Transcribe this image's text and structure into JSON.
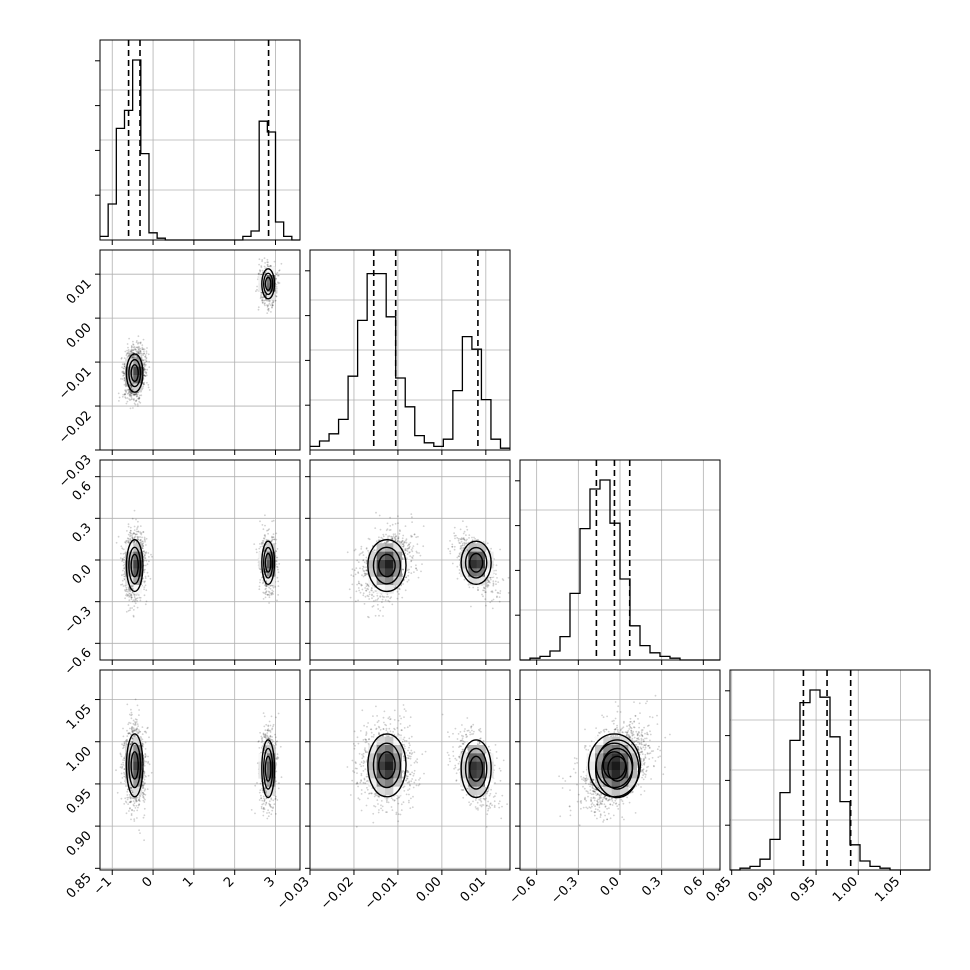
{
  "chart_data": {
    "type": "corner",
    "title": "",
    "colors": {
      "line": "#000000",
      "grid": "#b0b0b0",
      "scatter": "#000000"
    },
    "grid": true,
    "parameters": [
      {
        "index": 0,
        "range": [
          -1.3,
          3.6
        ],
        "ticks": [
          -1,
          0,
          1,
          2,
          3
        ],
        "tick_labels": [
          "−1",
          "0",
          "1",
          "2",
          "3"
        ],
        "quantiles": [
          -0.6,
          -0.32,
          2.83
        ],
        "label": ""
      },
      {
        "index": 1,
        "range": [
          -0.03,
          0.0155
        ],
        "ticks": [
          -0.03,
          -0.02,
          -0.01,
          0.0,
          0.01
        ],
        "tick_labels": [
          "−0.03",
          "−0.02",
          "−0.01",
          "0.00",
          "0.01"
        ],
        "quantiles": [
          -0.0155,
          -0.0105,
          0.0082
        ],
        "label": ""
      },
      {
        "index": 2,
        "range": [
          -0.72,
          0.72
        ],
        "ticks": [
          -0.6,
          -0.3,
          0.0,
          0.3,
          0.6
        ],
        "tick_labels": [
          "−0.6",
          "−0.3",
          "0.0",
          "0.3",
          "0.6"
        ],
        "quantiles": [
          -0.17,
          -0.04,
          0.07
        ],
        "label": ""
      },
      {
        "index": 3,
        "range": [
          0.848,
          1.085
        ],
        "ticks": [
          0.85,
          0.9,
          0.95,
          1.0,
          1.05
        ],
        "tick_labels": [
          "0.85",
          "0.90",
          "0.95",
          "1.00",
          "1.05"
        ],
        "quantiles": [
          0.935,
          0.963,
          0.991
        ],
        "label": ""
      }
    ],
    "modes": [
      {
        "weight": 0.62,
        "mean": [
          -0.45,
          -0.0125,
          -0.04,
          0.972
        ],
        "sd": [
          0.13,
          0.0028,
          0.12,
          0.024
        ]
      },
      {
        "weight": 0.38,
        "mean": [
          2.82,
          0.0078,
          -0.02,
          0.968
        ],
        "sd": [
          0.1,
          0.0022,
          0.1,
          0.022
        ]
      }
    ],
    "histograms": [
      {
        "param": 0,
        "bin_edges": [
          -1.3,
          -1.1,
          -0.9,
          -0.7,
          -0.5,
          -0.3,
          -0.1,
          0.1,
          0.3,
          0.5,
          2.2,
          2.4,
          2.6,
          2.8,
          3.0,
          3.2,
          3.4,
          3.6
        ],
        "counts": [
          0.02,
          0.2,
          0.62,
          0.72,
          1.0,
          0.48,
          0.04,
          0.01,
          0.0,
          0.0,
          0.02,
          0.05,
          0.66,
          0.6,
          0.1,
          0.02,
          0.0
        ]
      },
      {
        "param": 1,
        "bins": 21,
        "counts": [
          0.02,
          0.05,
          0.09,
          0.17,
          0.41,
          0.72,
          0.98,
          0.98,
          0.74,
          0.4,
          0.24,
          0.08,
          0.04,
          0.02,
          0.06,
          0.33,
          0.63,
          0.56,
          0.28,
          0.06,
          0.01
        ]
      },
      {
        "param": 2,
        "bins": 20,
        "counts": [
          0.0,
          0.01,
          0.02,
          0.05,
          0.13,
          0.37,
          0.73,
          0.95,
          1.0,
          0.76,
          0.45,
          0.19,
          0.08,
          0.04,
          0.02,
          0.01,
          0.0,
          0.0,
          0.0,
          0.0
        ]
      },
      {
        "param": 3,
        "bins": 20,
        "counts": [
          0.0,
          0.01,
          0.02,
          0.06,
          0.17,
          0.43,
          0.72,
          0.93,
          1.0,
          0.96,
          0.74,
          0.38,
          0.14,
          0.05,
          0.02,
          0.01,
          0.0,
          0.0,
          0.0,
          0.0
        ]
      }
    ]
  }
}
